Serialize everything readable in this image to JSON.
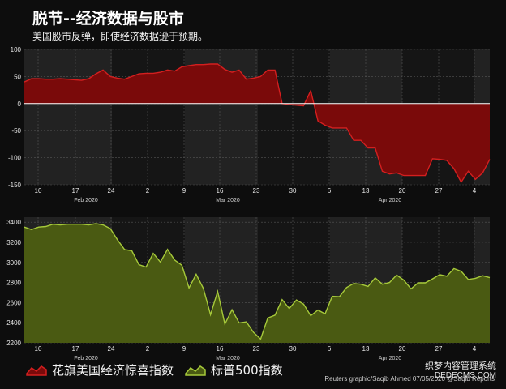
{
  "title": "脱节--经济数据与股市",
  "subtitle": "美国股市反弹，即使经济数据逊于预期。",
  "colors": {
    "background": "#0d0d0d",
    "citi_fill": "#7a0a0a",
    "citi_line": "#d41f1f",
    "spx_fill": "#4a5a12",
    "spx_line": "#a6c93a"
  },
  "chart_data": [
    {
      "type": "area",
      "ylim": [
        -150,
        100
      ],
      "yticks": [
        100,
        50,
        0,
        -50,
        -100,
        -150
      ],
      "x_day_labels": [
        "10",
        "17",
        "24",
        "2",
        "9",
        "16",
        "23",
        "30",
        "6",
        "13",
        "20",
        "27",
        "4"
      ],
      "x_month_labels": [
        "Feb 2020",
        "Mar 2020",
        "Apr 2020"
      ],
      "series": [
        {
          "name": "花旗美国经济惊喜指数",
          "values": [
            40,
            46,
            46,
            45,
            45,
            46,
            45,
            44,
            43,
            46,
            55,
            62,
            50,
            47,
            45,
            50,
            55,
            56,
            56,
            58,
            62,
            60,
            68,
            70,
            72,
            72,
            73,
            73,
            63,
            58,
            62,
            45,
            47,
            50,
            62,
            62,
            0,
            -2,
            -3,
            -4,
            24,
            -32,
            -40,
            -45,
            -45,
            -45,
            -68,
            -68,
            -82,
            -82,
            -125,
            -130,
            -128,
            -133,
            -133,
            -133,
            -133,
            -102,
            -103,
            -105,
            -120,
            -145,
            -125,
            -140,
            -128,
            -103
          ]
        }
      ]
    },
    {
      "type": "area",
      "ylim": [
        2200,
        3450
      ],
      "yticks": [
        3400,
        3200,
        3000,
        2800,
        2600,
        2400,
        2200
      ],
      "x_day_labels": [
        "10",
        "17",
        "24",
        "2",
        "9",
        "16",
        "23",
        "30",
        "6",
        "13",
        "20",
        "27",
        "4"
      ],
      "x_month_labels": [
        "Feb 2020",
        "Mar 2020",
        "Apr 2020"
      ],
      "series": [
        {
          "name": "标普500指数",
          "values": [
            3352,
            3327,
            3352,
            3357,
            3380,
            3373,
            3380,
            3380,
            3380,
            3373,
            3386,
            3373,
            3337,
            3226,
            3128,
            3116,
            2978,
            2954,
            3090,
            3003,
            3130,
            3023,
            2972,
            2746,
            2882,
            2741,
            2480,
            2711,
            2386,
            2529,
            2398,
            2409,
            2304,
            2237,
            2447,
            2475,
            2630,
            2541,
            2626,
            2585,
            2470,
            2526,
            2488,
            2663,
            2659,
            2750,
            2790,
            2783,
            2761,
            2846,
            2783,
            2800,
            2874,
            2823,
            2737,
            2797,
            2797,
            2836,
            2878,
            2863,
            2939,
            2912,
            2831,
            2842,
            2868,
            2848
          ]
        }
      ]
    }
  ],
  "legend": [
    {
      "label": "花旗美国经济惊喜指数"
    },
    {
      "label": "标普500指数"
    }
  ],
  "credit": "Reuters graphic/Saqib Ahmed 07/05/2020 @Saqib Reports",
  "watermark": {
    "line1": "织梦内容管理系统",
    "line2": "DEDECMS.COM"
  }
}
